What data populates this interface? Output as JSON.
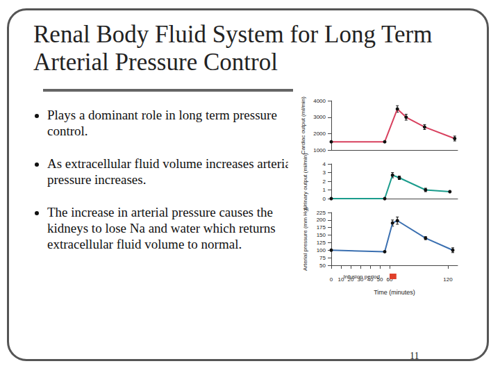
{
  "slide": {
    "title": "Renal Body Fluid System for Long Term Arterial Pressure Control",
    "bullets": [
      "Plays a dominant role in long term pressure control.",
      "As extracellular fluid volume increases arterial pressure increases.",
      "The increase in arterial pressure causes the kidneys to lose Na and water which returns extracellular fluid volume to normal."
    ],
    "page": "11"
  },
  "chart_data": [
    {
      "type": "line",
      "ylabel": "Cardiac output (ml/min)",
      "color": "#d8405e",
      "marker": "circle",
      "x": [
        0,
        55,
        68,
        77,
        96,
        127
      ],
      "values": [
        1500,
        1500,
        3500,
        3000,
        2400,
        1700
      ],
      "errors": [
        0,
        0,
        200,
        180,
        150,
        150
      ],
      "xlim": [
        0,
        130
      ],
      "xticks": [
        0,
        10,
        20,
        30,
        40,
        50,
        60,
        120
      ],
      "ylim": [
        1000,
        4000
      ],
      "yticks": [
        1000,
        2000,
        3000,
        4000
      ],
      "tick_labels": "y"
    },
    {
      "type": "line",
      "ylabel": "Urinary output (ml/min)",
      "color": "#1a9c8c",
      "marker": "circle",
      "x": [
        0,
        55,
        63,
        70,
        97,
        122
      ],
      "values": [
        0,
        0,
        2.7,
        2.4,
        1.0,
        0.8
      ],
      "errors": [
        0,
        0,
        0.3,
        0.2,
        0.2,
        0
      ],
      "xlim": [
        0,
        130
      ],
      "xticks": [
        0,
        10,
        20,
        30,
        40,
        50,
        60,
        120
      ],
      "ylim": [
        0,
        4
      ],
      "yticks": [
        0,
        1,
        2,
        3,
        4
      ],
      "tick_labels": "y"
    },
    {
      "type": "line",
      "ylabel": "Arterial pressure (mm Hg)",
      "xlabel": "Time (minutes)",
      "color": "#3a6fb0",
      "marker": "circle",
      "x": [
        0,
        55,
        63,
        68,
        97,
        125
      ],
      "values": [
        100,
        95,
        190,
        198,
        140,
        100
      ],
      "errors": [
        0,
        0,
        10,
        12,
        5,
        8
      ],
      "xlim": [
        0,
        130
      ],
      "xticks": [
        0,
        10,
        20,
        30,
        40,
        50,
        60,
        120
      ],
      "ylim": [
        50,
        225
      ],
      "yticks": [
        50,
        75,
        100,
        125,
        150,
        175,
        200,
        225
      ],
      "infusion": {
        "label": "Infusion period",
        "start": 60,
        "end": 67
      }
    }
  ]
}
